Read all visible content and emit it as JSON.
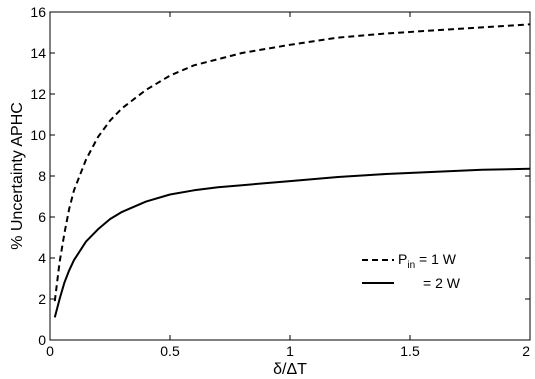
{
  "chart_data": {
    "type": "line",
    "xlabel": "δ/ΔT",
    "ylabel": "% Uncertainty APHC",
    "xlim": [
      0,
      2
    ],
    "ylim": [
      0,
      16
    ],
    "xticks": [
      0,
      0.5,
      1,
      1.5,
      2
    ],
    "xtick_labels": [
      "0",
      "0.5",
      "1",
      "1.5",
      "2"
    ],
    "yticks": [
      0,
      2,
      4,
      6,
      8,
      10,
      12,
      14,
      16
    ],
    "ytick_labels": [
      "0",
      "2",
      "4",
      "6",
      "8",
      "10",
      "12",
      "14",
      "16"
    ],
    "grid": false,
    "legend_position": "lower-right",
    "series": [
      {
        "name_main": "P",
        "name_sub": "in",
        "name_suffix": " = 1 W",
        "style": "dashed",
        "x": [
          0.02,
          0.04,
          0.06,
          0.08,
          0.1,
          0.15,
          0.2,
          0.25,
          0.3,
          0.4,
          0.5,
          0.6,
          0.7,
          0.8,
          1.0,
          1.2,
          1.4,
          1.6,
          1.8,
          2.0
        ],
        "y": [
          1.9,
          3.8,
          5.2,
          6.4,
          7.3,
          8.8,
          9.9,
          10.7,
          11.3,
          12.2,
          12.9,
          13.4,
          13.7,
          14.0,
          14.4,
          14.75,
          14.95,
          15.1,
          15.25,
          15.4
        ]
      },
      {
        "name_suffix": "= 2 W",
        "style": "solid",
        "x": [
          0.02,
          0.04,
          0.06,
          0.08,
          0.1,
          0.15,
          0.2,
          0.25,
          0.3,
          0.4,
          0.5,
          0.6,
          0.7,
          0.8,
          1.0,
          1.2,
          1.4,
          1.6,
          1.8,
          2.0
        ],
        "y": [
          1.1,
          2.0,
          2.8,
          3.4,
          3.9,
          4.8,
          5.4,
          5.9,
          6.25,
          6.75,
          7.1,
          7.3,
          7.45,
          7.55,
          7.75,
          7.95,
          8.1,
          8.2,
          8.3,
          8.35
        ]
      }
    ]
  }
}
